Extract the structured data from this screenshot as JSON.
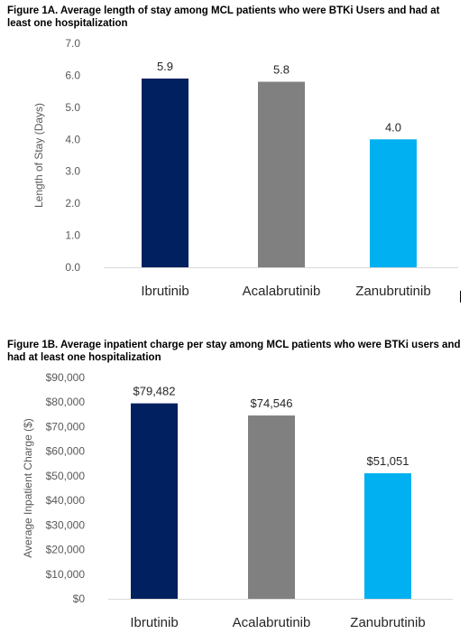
{
  "chart_data": [
    {
      "type": "bar",
      "title": "Figure 1A. Average length of stay among MCL patients who were BTKi Users and had at least one hospitalization",
      "xlabel": "",
      "ylabel": "Length of Stay (Days)",
      "categories": [
        "Ibrutinib",
        "Acalabrutinib",
        "Zanubrutinib"
      ],
      "values": [
        5.9,
        5.8,
        4.0
      ],
      "data_labels": [
        "5.9",
        "5.8",
        "4.0"
      ],
      "ylim": [
        0,
        7
      ],
      "yticks": [
        0,
        1,
        2,
        3,
        4,
        5,
        6,
        7
      ],
      "ytick_labels": [
        "0.0",
        "1.0",
        "2.0",
        "3.0",
        "4.0",
        "5.0",
        "6.0",
        "7.0"
      ],
      "grid": false,
      "colors": [
        "#002060",
        "#808080",
        "#00B0F0"
      ]
    },
    {
      "type": "bar",
      "title": "Figure 1B. Average inpatient charge per stay among MCL patients who were BTKi users and had at least one hospitalization",
      "xlabel": "",
      "ylabel": "Average Inpatient Charge ($)",
      "categories": [
        "Ibrutinib",
        "Acalabrutinib",
        "Zanubrutinib"
      ],
      "values": [
        79482,
        74546,
        51051
      ],
      "data_labels": [
        "$79,482",
        "$74,546",
        "$51,051"
      ],
      "ylim": [
        0,
        90000
      ],
      "yticks": [
        0,
        10000,
        20000,
        30000,
        40000,
        50000,
        60000,
        70000,
        80000,
        90000
      ],
      "ytick_labels": [
        "$0",
        "$10,000",
        "$20,000",
        "$30,000",
        "$40,000",
        "$50,000",
        "$60,000",
        "$70,000",
        "$80,000",
        "$90,000"
      ],
      "grid": false,
      "colors": [
        "#002060",
        "#808080",
        "#00B0F0"
      ]
    }
  ]
}
